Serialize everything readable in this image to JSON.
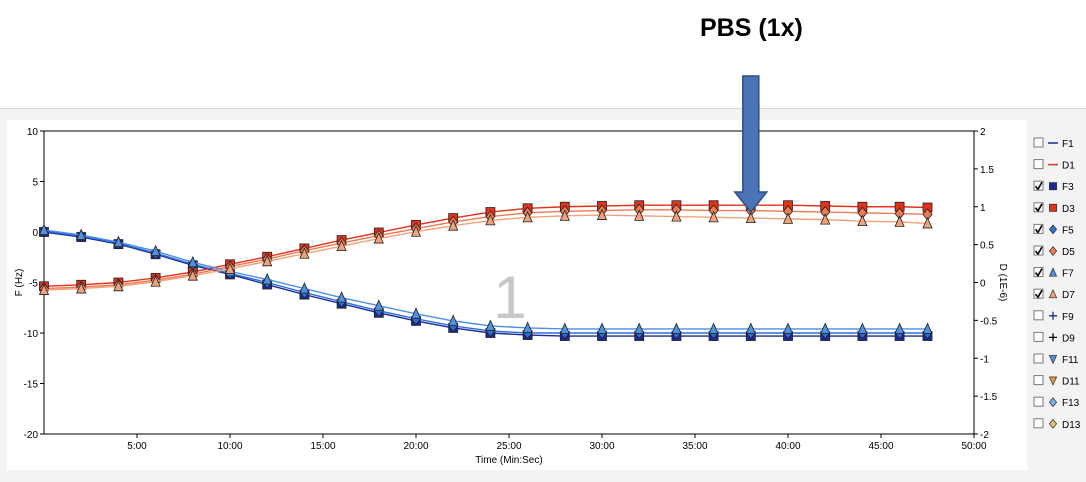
{
  "annotation": {
    "label": "PBS (1x)",
    "at_time": "38:00"
  },
  "watermark": "1",
  "colors": {
    "frequency_series": "#1a2a9c",
    "frequency_series_2": "#2e6fd6",
    "frequency_series_3": "#4f8fe6",
    "dissipation_series": "#e3321a",
    "dissipation_series_2": "#f07a52",
    "dissipation_series_3": "#f2a27a",
    "arrow": "#4a74b6",
    "arrow_border": "#2f4f86",
    "grid": "#8a8a8a"
  },
  "legend": [
    {
      "label": "F1",
      "checked": false,
      "marker": "line",
      "color": "#1a2a9c"
    },
    {
      "label": "D1",
      "checked": false,
      "marker": "line",
      "color": "#e3321a"
    },
    {
      "label": "F3",
      "checked": true,
      "marker": "square",
      "color": "#1a2a9c"
    },
    {
      "label": "D3",
      "checked": true,
      "marker": "square",
      "color": "#e3321a"
    },
    {
      "label": "F5",
      "checked": true,
      "marker": "diamond",
      "color": "#2e6fd6"
    },
    {
      "label": "D5",
      "checked": true,
      "marker": "diamond",
      "color": "#f07a52"
    },
    {
      "label": "F7",
      "checked": true,
      "marker": "triangle-up",
      "color": "#4f8fe6"
    },
    {
      "label": "D7",
      "checked": true,
      "marker": "triangle-up",
      "color": "#f2a27a"
    },
    {
      "label": "F9",
      "checked": false,
      "marker": "plus",
      "color": "#1a2a9c"
    },
    {
      "label": "D9",
      "checked": false,
      "marker": "plus",
      "color": "#000000"
    },
    {
      "label": "F11",
      "checked": false,
      "marker": "triangle-down",
      "color": "#4f8fe6"
    },
    {
      "label": "D11",
      "checked": false,
      "marker": "triangle-down",
      "color": "#e89a3a"
    },
    {
      "label": "F13",
      "checked": false,
      "marker": "diamond",
      "color": "#7ab0e8"
    },
    {
      "label": "D13",
      "checked": false,
      "marker": "diamond",
      "color": "#e8c070"
    }
  ],
  "chart_data": {
    "type": "line",
    "title": "",
    "xlabel": "Time (Min:Sec)",
    "ylabel": "F (Hz)",
    "y2label": "D (1E-6)",
    "xlim": [
      0,
      50
    ],
    "ylim": [
      -20,
      10
    ],
    "y2lim": [
      -2,
      2
    ],
    "x_ticks": [
      "5:00",
      "10:00",
      "15:00",
      "20:00",
      "25:00",
      "30:00",
      "35:00",
      "40:00",
      "45:00",
      "50:00"
    ],
    "x_tick_values": [
      5,
      10,
      15,
      20,
      25,
      30,
      35,
      40,
      45,
      50
    ],
    "y_ticks": [
      "10",
      "5",
      "0",
      "-5",
      "-10",
      "-15",
      "-20"
    ],
    "y_tick_values": [
      10,
      5,
      0,
      -5,
      -10,
      -15,
      -20
    ],
    "y2_ticks": [
      "2",
      "1.5",
      "1",
      "0.5",
      "0",
      "-0.5",
      "-1",
      "-1.5",
      "-2"
    ],
    "y2_tick_values": [
      2,
      1.5,
      1,
      0.5,
      0,
      -0.5,
      -1,
      -1.5,
      -2
    ],
    "grid": true,
    "legend_position": "right",
    "x": [
      0,
      2,
      4,
      6,
      8,
      10,
      12,
      14,
      16,
      18,
      20,
      22,
      24,
      26,
      28,
      30,
      32,
      34,
      36,
      38,
      40,
      42,
      44,
      46,
      47.5
    ],
    "series": [
      {
        "name": "F3",
        "axis": "left",
        "marker": "square",
        "color": "#1a2a9c",
        "values": [
          0.0,
          -0.5,
          -1.2,
          -2.2,
          -3.3,
          -4.2,
          -5.2,
          -6.2,
          -7.1,
          -8.0,
          -8.8,
          -9.5,
          -10.0,
          -10.2,
          -10.3,
          -10.3,
          -10.3,
          -10.3,
          -10.3,
          -10.3,
          -10.3,
          -10.3,
          -10.3,
          -10.3,
          -10.3
        ]
      },
      {
        "name": "D3",
        "axis": "right",
        "marker": "square",
        "color": "#e3321a",
        "values": [
          -0.05,
          -0.03,
          0.0,
          0.06,
          0.14,
          0.24,
          0.34,
          0.45,
          0.56,
          0.66,
          0.76,
          0.85,
          0.93,
          0.98,
          1.0,
          1.01,
          1.02,
          1.02,
          1.02,
          1.02,
          1.02,
          1.01,
          1.0,
          1.0,
          0.99
        ]
      },
      {
        "name": "F5",
        "axis": "left",
        "marker": "diamond",
        "color": "#2e6fd6",
        "values": [
          0.1,
          -0.4,
          -1.1,
          -2.1,
          -3.2,
          -4.1,
          -5.0,
          -6.0,
          -6.9,
          -7.8,
          -8.6,
          -9.3,
          -9.8,
          -10.0,
          -10.0,
          -10.0,
          -10.0,
          -10.0,
          -10.0,
          -10.0,
          -10.0,
          -10.0,
          -10.0,
          -10.0,
          -10.0
        ]
      },
      {
        "name": "D5",
        "axis": "right",
        "marker": "diamond",
        "color": "#f07a52",
        "values": [
          -0.08,
          -0.06,
          -0.03,
          0.03,
          0.11,
          0.21,
          0.31,
          0.42,
          0.52,
          0.62,
          0.71,
          0.8,
          0.87,
          0.92,
          0.94,
          0.95,
          0.96,
          0.96,
          0.95,
          0.95,
          0.94,
          0.93,
          0.92,
          0.91,
          0.9
        ]
      },
      {
        "name": "F7",
        "axis": "left",
        "marker": "triangle-up",
        "color": "#4f8fe6",
        "values": [
          0.2,
          -0.3,
          -1.0,
          -1.9,
          -3.0,
          -3.9,
          -4.7,
          -5.6,
          -6.5,
          -7.3,
          -8.1,
          -8.8,
          -9.3,
          -9.5,
          -9.6,
          -9.6,
          -9.6,
          -9.6,
          -9.6,
          -9.6,
          -9.6,
          -9.6,
          -9.6,
          -9.6,
          -9.6
        ]
      },
      {
        "name": "D7",
        "axis": "right",
        "marker": "triangle-up",
        "color": "#f2a27a",
        "values": [
          -0.1,
          -0.08,
          -0.05,
          0.01,
          0.09,
          0.18,
          0.28,
          0.38,
          0.48,
          0.58,
          0.67,
          0.75,
          0.82,
          0.86,
          0.88,
          0.89,
          0.88,
          0.87,
          0.86,
          0.85,
          0.84,
          0.83,
          0.81,
          0.8,
          0.78
        ]
      }
    ]
  }
}
